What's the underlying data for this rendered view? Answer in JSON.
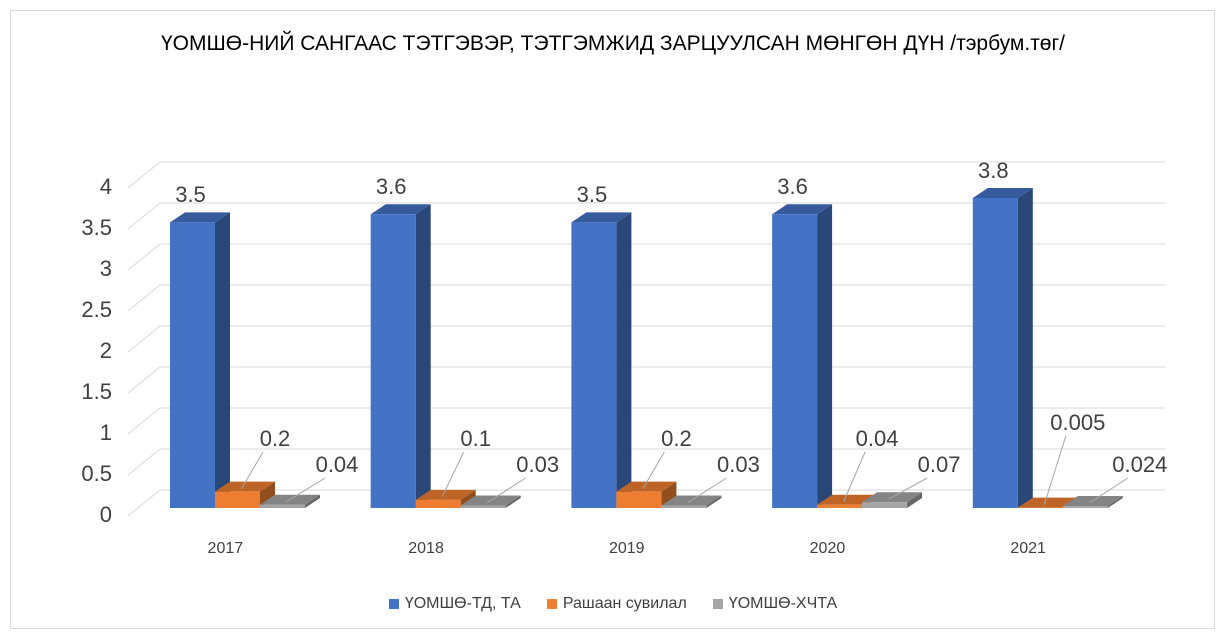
{
  "chart_data": {
    "type": "bar3d",
    "title": "ҮОМШӨ-НИЙ САНГААС ТЭТГЭВЭР, ТЭТГЭМЖИД ЗАРЦУУЛСАН МӨНГӨН ДҮН /тэрбум.төг/",
    "categories": [
      "2017",
      "2018",
      "2019",
      "2020",
      "2021"
    ],
    "series": [
      {
        "name": "ҮОМШӨ-ТД, ТА",
        "color": "#4472c4",
        "values": [
          3.5,
          3.6,
          3.5,
          3.6,
          3.8
        ]
      },
      {
        "name": "Рашаан сувилал",
        "color": "#ed7d31",
        "values": [
          0.2,
          0.1,
          0.2,
          0.04,
          0.005
        ]
      },
      {
        "name": "ҮОМШӨ-ХЧТА",
        "color": "#a5a5a5",
        "values": [
          0.04,
          0.03,
          0.03,
          0.07,
          0.024
        ]
      }
    ],
    "ylim": [
      0,
      4
    ],
    "yticks": [
      0,
      0.5,
      1,
      1.5,
      2,
      2.5,
      3,
      3.5,
      4
    ],
    "grid": true,
    "legend": "bottom"
  }
}
